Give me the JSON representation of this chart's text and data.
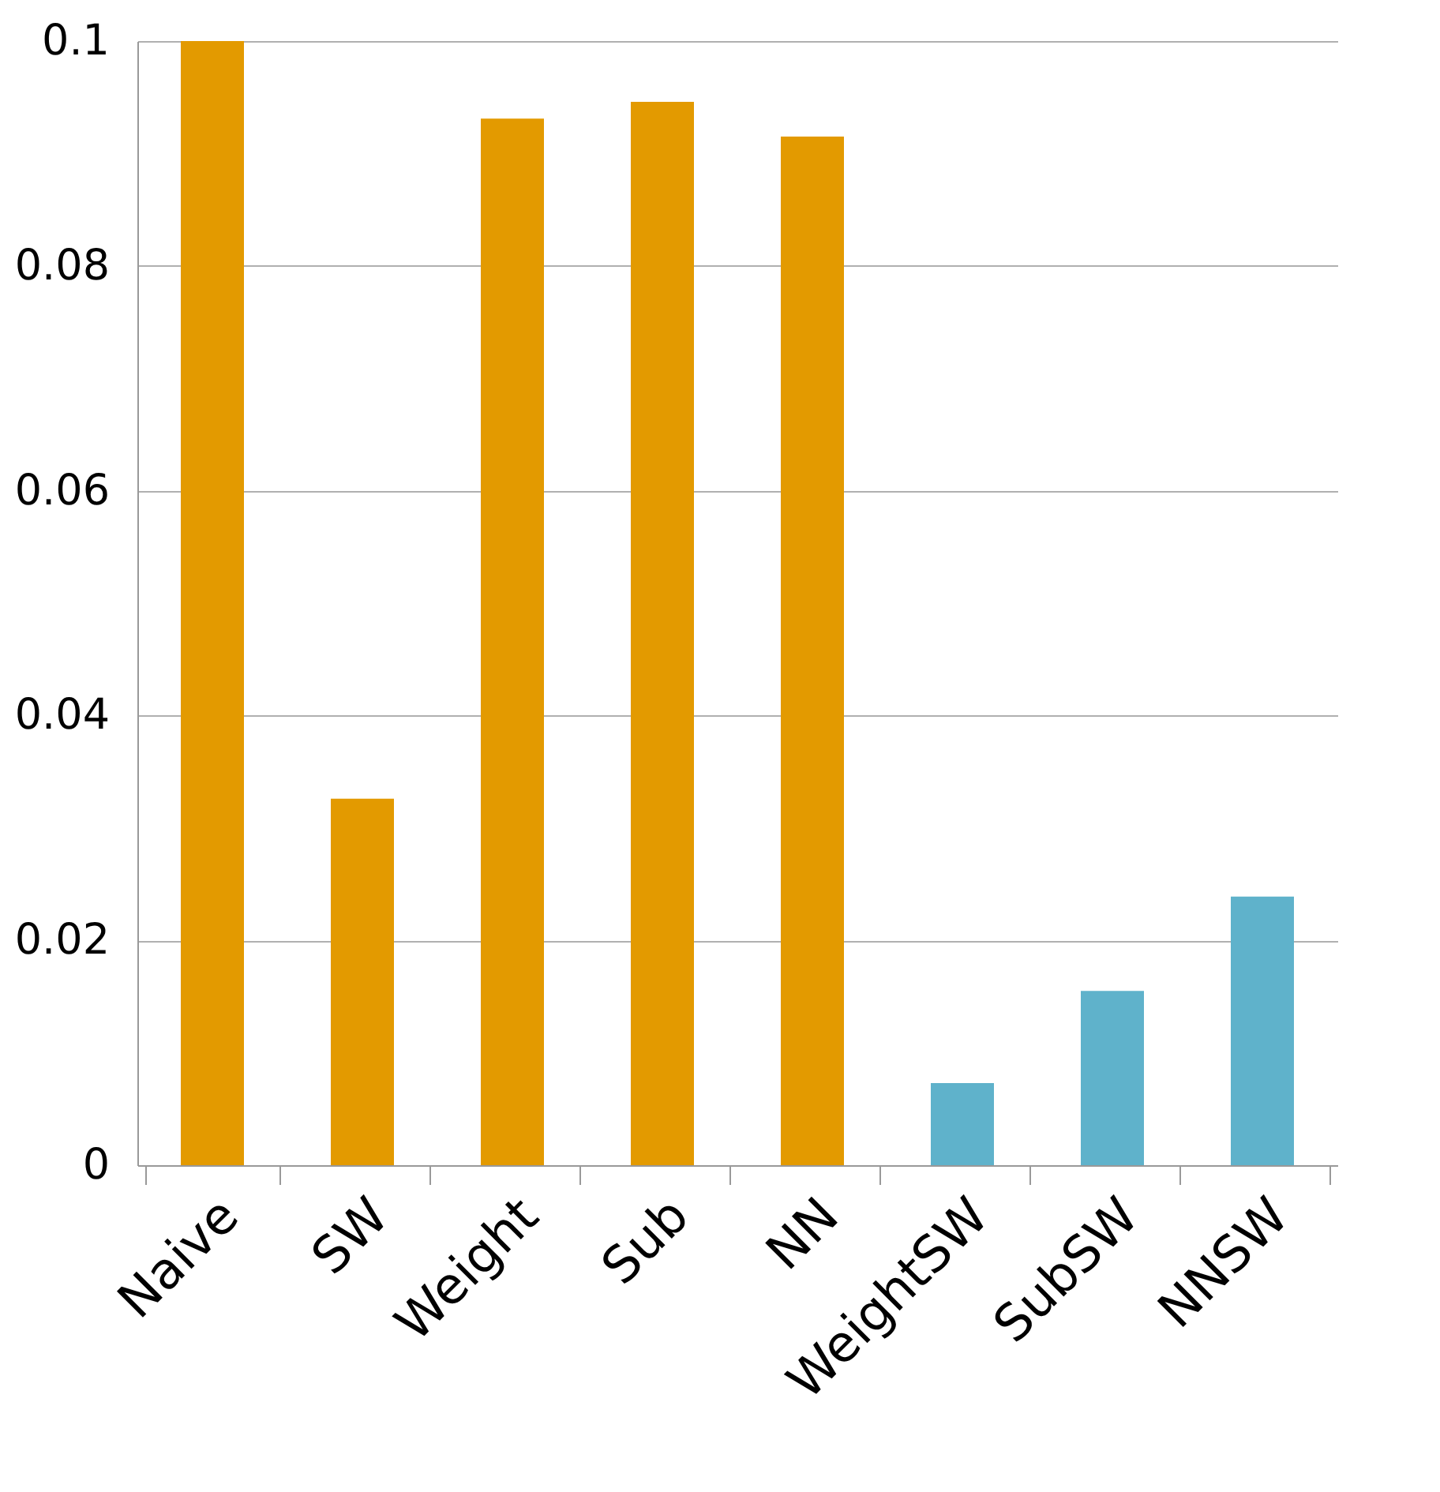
{
  "chart_data": {
    "type": "bar",
    "categories": [
      "Naive",
      "SW",
      "Weight",
      "Sub",
      "NN",
      "WeightSW",
      "SubSW",
      "NNSW"
    ],
    "values": [
      0.1,
      0.0326,
      0.0931,
      0.0946,
      0.0915,
      0.0073,
      0.0155,
      0.0239
    ],
    "colors": [
      "#e39a00",
      "#e39a00",
      "#e39a00",
      "#e39a00",
      "#e39a00",
      "#5fb2cb",
      "#5fb2cb",
      "#5fb2cb"
    ],
    "ylim": [
      0,
      0.1
    ],
    "yticks": [
      0,
      0.02,
      0.04,
      0.06,
      0.08,
      0.1
    ],
    "grid": "y"
  }
}
